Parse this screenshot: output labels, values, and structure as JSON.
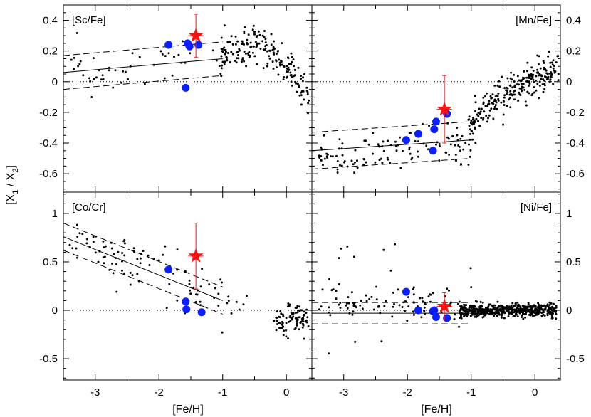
{
  "figure": {
    "ylabel_main": "[X",
    "ylabel_sub1": "1",
    "ylabel_mid": " / X",
    "ylabel_sub2": "2",
    "ylabel_end": "]",
    "xlabel_left": "[Fe/H]",
    "xlabel_right": "[Fe/H]",
    "colors": {
      "points": "#000000",
      "highlight": "#0a1eff",
      "star": "#ff1010"
    }
  },
  "chart_data": [
    {
      "id": "sc",
      "type": "scatter",
      "title": "[Sc/Fe]",
      "xlim": [
        -3.5,
        0.4
      ],
      "ylim": [
        -0.72,
        0.5
      ],
      "xticks": [
        "-3",
        "-2",
        "-1",
        "0"
      ],
      "yticks": [
        "0.4",
        "0.2",
        "0",
        "-0.2",
        "-0.4",
        "-0.6"
      ],
      "ytick_values": [
        0.4,
        0.2,
        0,
        -0.2,
        -0.4,
        -0.6
      ],
      "ytick_side": "left",
      "trend": {
        "x": [
          -3.5,
          -1.0
        ],
        "y": [
          0.06,
          0.15
        ],
        "offset": 0.11
      },
      "highlight": {
        "x": [
          -1.85,
          -1.55,
          -1.52,
          -1.38,
          -1.58
        ],
        "y": [
          0.24,
          0.25,
          0.23,
          0.24,
          -0.04
        ]
      },
      "star": {
        "x": -1.42,
        "y": 0.3,
        "yerr": 0.14,
        "xerr": 0.12
      },
      "field_seed": 11
    },
    {
      "id": "mn",
      "type": "scatter",
      "title": "[Mn/Fe]",
      "xlim": [
        -3.5,
        0.4
      ],
      "ylim": [
        -0.72,
        0.5
      ],
      "xticks": [
        "-3",
        "-2",
        "-1",
        "0"
      ],
      "yticks": [
        "0.4",
        "0.2",
        "0",
        "-0.2",
        "-0.4",
        "-0.6"
      ],
      "ytick_values": [
        0.4,
        0.2,
        0,
        -0.2,
        -0.4,
        -0.6
      ],
      "ytick_side": "right",
      "trend": {
        "x": [
          -3.5,
          -1.0
        ],
        "y": [
          -0.45,
          -0.38
        ],
        "offset": 0.12
      },
      "highlight": {
        "x": [
          -2.02,
          -1.83,
          -1.58,
          -1.55,
          -1.38,
          -1.6
        ],
        "y": [
          -0.38,
          -0.34,
          -0.31,
          -0.26,
          -0.21,
          -0.45
        ]
      },
      "star": {
        "x": -1.42,
        "y": -0.18,
        "yerr": 0.22,
        "xerr": 0.12
      },
      "field_seed": 23
    },
    {
      "id": "co",
      "type": "scatter",
      "title": "[Co/Cr]",
      "xlim": [
        -3.5,
        0.4
      ],
      "ylim": [
        -0.72,
        1.22
      ],
      "xticks": [
        "-3",
        "-2",
        "-1",
        "0"
      ],
      "yticks": [
        "1",
        "0.5",
        "0",
        "-0.5"
      ],
      "ytick_values": [
        1,
        0.5,
        0,
        -0.5
      ],
      "ytick_side": "left",
      "trend": {
        "x": [
          -3.5,
          -1.0
        ],
        "y": [
          0.76,
          0.1
        ],
        "offset": 0.14
      },
      "highlight": {
        "x": [
          -1.85,
          -1.58,
          -1.57,
          -1.33
        ],
        "y": [
          0.42,
          0.09,
          0.01,
          -0.02
        ]
      },
      "star": {
        "x": -1.42,
        "y": 0.56,
        "yerr": 0.34,
        "xerr": 0.12
      },
      "field_seed": 37
    },
    {
      "id": "ni",
      "type": "scatter",
      "title": "[Ni/Fe]",
      "xlim": [
        -3.5,
        0.4
      ],
      "ylim": [
        -0.72,
        1.22
      ],
      "xticks": [
        "-3",
        "-2",
        "-1",
        "0"
      ],
      "yticks": [
        "1",
        "0.5",
        "0",
        "-0.5"
      ],
      "ytick_values": [
        1,
        0.5,
        0,
        -0.5
      ],
      "ytick_side": "right",
      "trend": {
        "x": [
          -3.5,
          -1.0
        ],
        "y": [
          -0.03,
          -0.03
        ],
        "offset": 0.11
      },
      "highlight": {
        "x": [
          -2.02,
          -1.83,
          -1.6,
          -1.58,
          -1.55,
          -1.38
        ],
        "y": [
          0.19,
          0.0,
          -0.01,
          0.0,
          -0.07,
          -0.08
        ]
      },
      "star": {
        "x": -1.42,
        "y": 0.04,
        "yerr": 0.14,
        "xerr": 0.12
      },
      "field_seed": 53
    }
  ]
}
